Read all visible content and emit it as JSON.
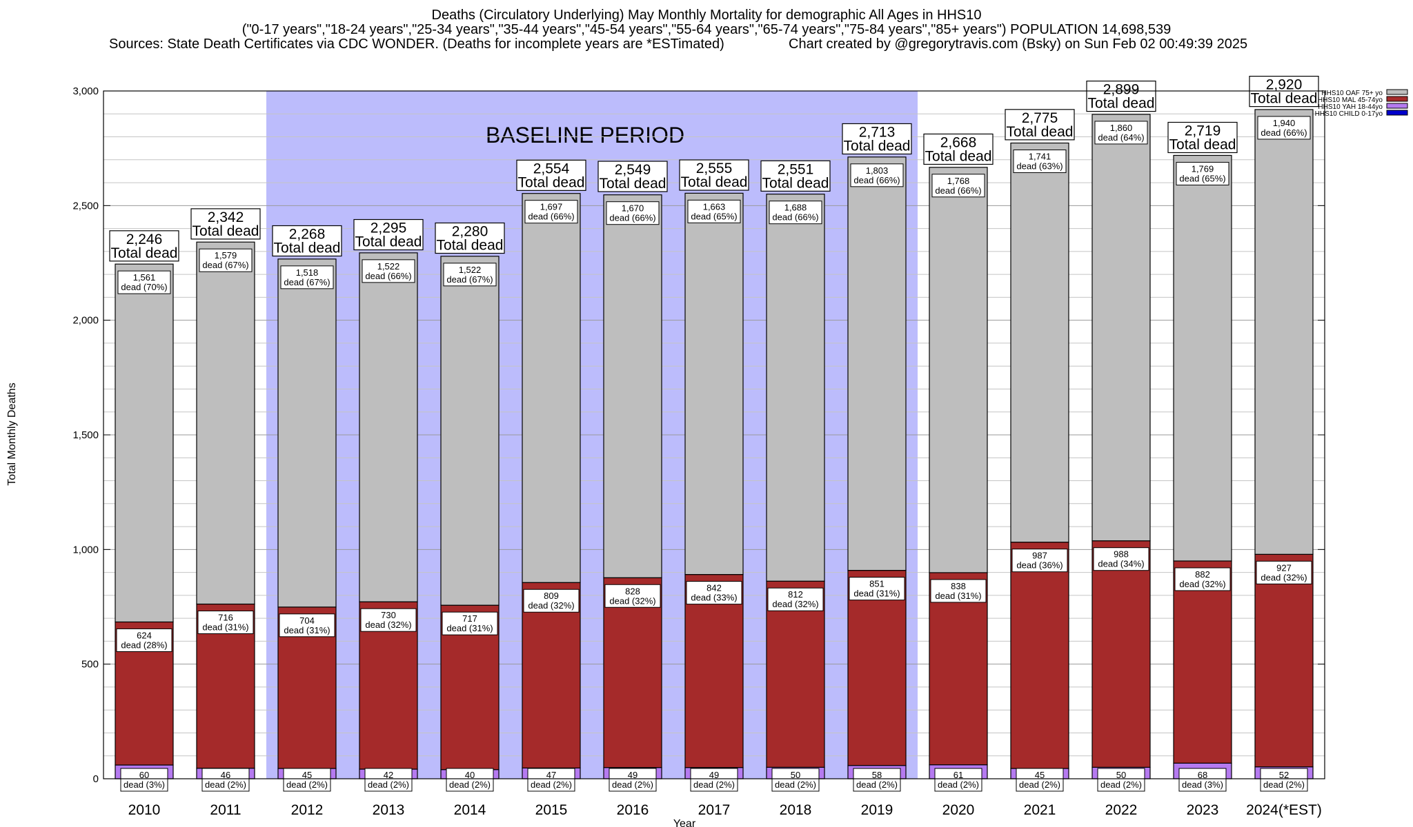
{
  "header": {
    "title_line1": "Deaths (Circulatory Underlying) May Monthly Mortality for demographic All Ages in HHS10",
    "title_line2": "(\"0-17 years\",\"18-24 years\",\"25-34 years\",\"35-44 years\",\"45-54 years\",\"55-64 years\",\"65-74 years\",\"75-84 years\",\"85+ years\") POPULATION 14,698,539",
    "sources": "Sources: State Death Certificates via CDC WONDER. (Deaths for incomplete years are *ESTimated)",
    "credit": "Chart created by @gregorytravis.com (Bsky) on Sun Feb 02 00:49:39 2025"
  },
  "chart_data": {
    "type": "bar",
    "stacked": true,
    "xlabel": "Year",
    "ylabel": "Total Monthly Deaths",
    "ylim": [
      0,
      3000
    ],
    "yticks": [
      0,
      500,
      1000,
      1500,
      2000,
      2500,
      3000
    ],
    "ytick_labels": [
      "0",
      "500",
      "1,000",
      "1,500",
      "2,000",
      "2,500",
      "3,000"
    ],
    "grid": true,
    "legend_position": "top-right",
    "categories": [
      "2010",
      "2011",
      "2012",
      "2013",
      "2014",
      "2015",
      "2016",
      "2017",
      "2018",
      "2019",
      "2020",
      "2021",
      "2022",
      "2023",
      "2024(*EST)"
    ],
    "baseline_period": {
      "label": "BASELINE PERIOD",
      "from": "2012",
      "to": "2019",
      "color": "#bcbcfc"
    },
    "total_label_suffix": "Total dead",
    "segment_label_prefix": "dead",
    "totals": [
      2246,
      2342,
      2268,
      2295,
      2280,
      2554,
      2549,
      2555,
      2551,
      2713,
      2668,
      2775,
      2899,
      2719,
      2920
    ],
    "totals_text": [
      "2,246",
      "2,342",
      "2,268",
      "2,295",
      "2,280",
      "2,554",
      "2,549",
      "2,555",
      "2,551",
      "2,713",
      "2,668",
      "2,775",
      "2,899",
      "2,719",
      "2,920"
    ],
    "series": [
      {
        "name": "HHS10 CHILD 0-17yo",
        "color": "#0000cc",
        "values": [
          0,
          0,
          0,
          0,
          0,
          0,
          0,
          0,
          0,
          0,
          0,
          0,
          0,
          0,
          0
        ]
      },
      {
        "name": "HHS10 YAH 18-44yo",
        "color": "#b57af0",
        "values": [
          60,
          46,
          45,
          42,
          40,
          47,
          49,
          49,
          50,
          58,
          61,
          45,
          50,
          68,
          52
        ],
        "labels": [
          "60",
          "46",
          "45",
          "42",
          "40",
          "47",
          "49",
          "49",
          "50",
          "58",
          "61",
          "45",
          "50",
          "68",
          "52"
        ],
        "pcts": [
          "(3%)",
          "(2%)",
          "(2%)",
          "(2%)",
          "(2%)",
          "(2%)",
          "(2%)",
          "(2%)",
          "(2%)",
          "(2%)",
          "(2%)",
          "(2%)",
          "(2%)",
          "(3%)",
          "(2%)"
        ]
      },
      {
        "name": "HHS10 MAL 45-74yo",
        "color": "#a52a2a",
        "values": [
          624,
          716,
          704,
          730,
          717,
          809,
          828,
          842,
          812,
          851,
          838,
          987,
          988,
          882,
          927
        ],
        "labels": [
          "624",
          "716",
          "704",
          "730",
          "717",
          "809",
          "828",
          "842",
          "812",
          "851",
          "838",
          "987",
          "988",
          "882",
          "927"
        ],
        "pcts": [
          "(28%)",
          "(31%)",
          "(31%)",
          "(32%)",
          "(31%)",
          "(32%)",
          "(32%)",
          "(33%)",
          "(32%)",
          "(31%)",
          "(31%)",
          "(36%)",
          "(34%)",
          "(32%)",
          "(32%)"
        ]
      },
      {
        "name": "HHS10 OAF 75+ yo",
        "color": "#bebebe",
        "values": [
          1561,
          1579,
          1518,
          1522,
          1522,
          1697,
          1670,
          1663,
          1688,
          1803,
          1768,
          1741,
          1860,
          1769,
          1940
        ],
        "labels": [
          "1,561",
          "1,579",
          "1,518",
          "1,522",
          "1,522",
          "1,697",
          "1,670",
          "1,663",
          "1,688",
          "1,803",
          "1,768",
          "1,741",
          "1,860",
          "1,769",
          "1,940"
        ],
        "pcts": [
          "(70%)",
          "(67%)",
          "(67%)",
          "(66%)",
          "(67%)",
          "(66%)",
          "(66%)",
          "(65%)",
          "(66%)",
          "(66%)",
          "(66%)",
          "(63%)",
          "(64%)",
          "(65%)",
          "(66%)"
        ]
      }
    ],
    "legend_order": [
      "HHS10 OAF 75+ yo",
      "HHS10 MAL 45-74yo",
      "HHS10 YAH 18-44yo",
      "HHS10 CHILD 0-17yo"
    ]
  }
}
